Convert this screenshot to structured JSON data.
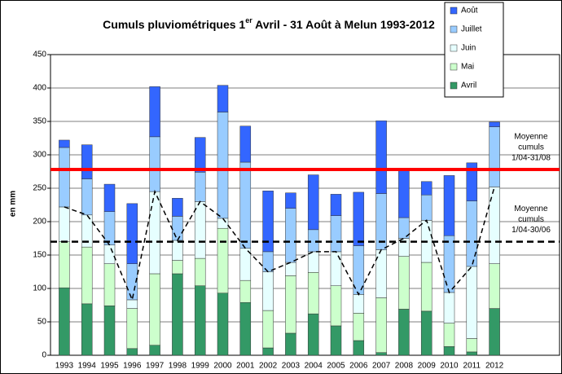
{
  "chart_data": {
    "type": "stacked_bar",
    "title": {
      "main": "Cumuls pluviométriques 1",
      "sup": "er",
      "rest": " Avril - 31 Août à Melun 1993-2012"
    },
    "y_label": "en mm",
    "categories": [
      "1993",
      "1994",
      "1995",
      "1996",
      "1997",
      "1998",
      "1999",
      "2000",
      "2001",
      "2002",
      "2003",
      "2004",
      "2005",
      "2006",
      "2007",
      "2008",
      "2009",
      "2010",
      "2011",
      "2012"
    ],
    "series": [
      {
        "name": "Avril",
        "color": "#339966",
        "values": [
          101,
          77,
          74,
          10,
          15,
          122,
          104,
          93,
          79,
          11,
          33,
          62,
          44,
          22,
          4,
          69,
          66,
          13,
          5,
          70
        ]
      },
      {
        "name": "Mai",
        "color": "#ccffcc",
        "values": [
          69,
          85,
          63,
          60,
          107,
          20,
          41,
          97,
          33,
          56,
          86,
          62,
          60,
          41,
          82,
          79,
          73,
          35,
          20,
          67
        ]
      },
      {
        "name": "Juin",
        "color": "#e6ffff",
        "values": [
          52,
          48,
          28,
          13,
          123,
          30,
          85,
          15,
          48,
          58,
          20,
          31,
          51,
          28,
          72,
          27,
          63,
          46,
          108,
          115
        ]
      },
      {
        "name": "Juillet",
        "color": "#99ccff",
        "values": [
          89,
          54,
          50,
          54,
          82,
          36,
          44,
          159,
          129,
          30,
          81,
          33,
          54,
          73,
          84,
          31,
          38,
          85,
          98,
          90
        ]
      },
      {
        "name": "Août",
        "color": "#3366ff",
        "values": [
          11,
          51,
          41,
          90,
          75,
          27,
          52,
          40,
          54,
          91,
          23,
          82,
          32,
          80,
          109,
          71,
          20,
          90,
          57,
          7
        ]
      }
    ],
    "reference_lines": [
      {
        "value": 278,
        "color": "#ff0000",
        "style": "solid",
        "label": [
          "Moyenne",
          "cumuls",
          "1/04-31/08"
        ]
      },
      {
        "value": 170,
        "color": "#000000",
        "style": "dashed",
        "label": [
          "Moyenne",
          "cumuls",
          "1/04-30/06"
        ]
      }
    ],
    "ylim": [
      0,
      450
    ],
    "yticks": [
      0,
      50,
      100,
      150,
      200,
      250,
      300,
      350,
      400,
      450
    ],
    "grid": true,
    "legend": "top-right"
  }
}
